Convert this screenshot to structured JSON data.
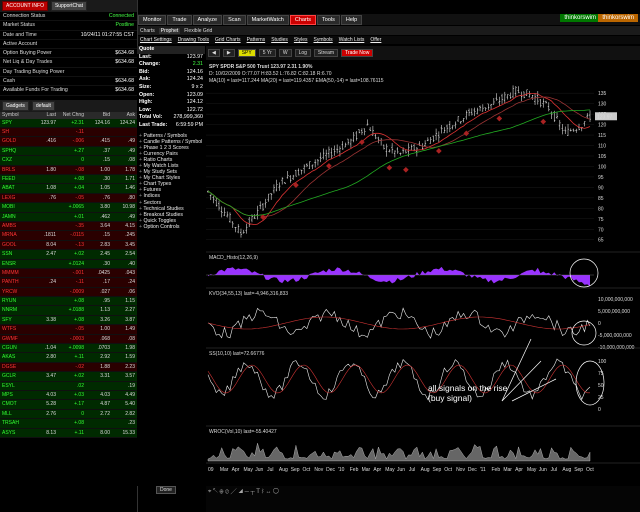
{
  "left": {
    "buttons": {
      "account_info": "ACCOUNT INFO",
      "support_chat": "SupportChat"
    },
    "account_rows": [
      {
        "label": "Connection Status",
        "value": "Connected",
        "green": true
      },
      {
        "label": "Market Status",
        "value": "Postline",
        "green": true
      },
      {
        "label": "Date and Time",
        "value": "10/24/11 01:27:55 CST",
        "green": false
      },
      {
        "label": "Active Account",
        "value": "",
        "green": false
      },
      {
        "label": "Option Buying Power",
        "value": "$634.68",
        "green": false
      },
      {
        "label": "Net Liq & Day Trades",
        "value": "$634.68",
        "green": false
      },
      {
        "label": "Day Trading Buying Power",
        "value": "",
        "green": false
      },
      {
        "label": "Cash",
        "value": "$634.68",
        "green": false
      },
      {
        "label": "Available Funds For Trading",
        "value": "$634.68",
        "green": false
      }
    ],
    "watchlist_controls": {
      "gadgets": "Gadgets",
      "list": "default"
    },
    "watchlist_headers": {
      "symbol": "Symbol",
      "last": "Last",
      "chg": "Net Chng",
      "bid": "Bid",
      "ask": "Ask"
    },
    "watchlist": [
      {
        "sym": "SPY",
        "last": "123.97",
        "chg": "+2.31",
        "bid": "124.16",
        "ask": "124.24",
        "dir": "up"
      },
      {
        "sym": "SH",
        "last": "",
        "chg": "-.11",
        "bid": "",
        "ask": "",
        "dir": "dn"
      },
      {
        "sym": "GOLD",
        "last": ".416",
        "chg": "-.006",
        "bid": ".415",
        "ask": ".49",
        "dir": "dn"
      },
      {
        "sym": "SPHQ",
        "last": "",
        "chg": "+.27",
        "bid": ".37",
        "ask": ".49",
        "dir": "up"
      },
      {
        "sym": "CXZ",
        "last": "",
        "chg": "0",
        "bid": ".15",
        "ask": ".08",
        "dir": "up"
      },
      {
        "sym": "BRLS",
        "last": "1.80",
        "chg": "-.08",
        "bid": "1.00",
        "ask": "1.78",
        "dir": "dn"
      },
      {
        "sym": "FEED",
        "last": "",
        "chg": "+.08",
        "bid": ".30",
        "ask": "1.71",
        "dir": "up"
      },
      {
        "sym": "ABAT",
        "last": "1.08",
        "chg": "+.04",
        "bid": "1.05",
        "ask": "1.46",
        "dir": "up"
      },
      {
        "sym": "LEXG",
        "last": ".76",
        "chg": "-.05",
        "bid": ".76",
        "ask": ".80",
        "dir": "dn"
      },
      {
        "sym": "MOBI",
        "last": "",
        "chg": "+.0065",
        "bid": "3.80",
        "ask": "10.98",
        "dir": "up"
      },
      {
        "sym": "JAMN",
        "last": "",
        "chg": "+.01",
        "bid": ".462",
        "ask": ".49",
        "dir": "up"
      },
      {
        "sym": "AMBS",
        "last": "",
        "chg": "-.35",
        "bid": "3.64",
        "ask": "4.15",
        "dir": "dn"
      },
      {
        "sym": "MRNA",
        "last": ".1811",
        "chg": "-.0115",
        "bid": ".15",
        "ask": ".245",
        "dir": "dn"
      },
      {
        "sym": "GOOL",
        "last": "8.04",
        "chg": "-.13",
        "bid": "2.83",
        "ask": "3.45",
        "dir": "dn"
      },
      {
        "sym": "SSN",
        "last": "2.47",
        "chg": "+.02",
        "bid": "2.45",
        "ask": "2.54",
        "dir": "up"
      },
      {
        "sym": "ENSR",
        "last": "",
        "chg": "+.0124",
        "bid": ".30",
        "ask": ".40",
        "dir": "up"
      },
      {
        "sym": "MMMM",
        "last": "",
        "chg": "-.001",
        "bid": ".0425",
        "ask": ".043",
        "dir": "dn"
      },
      {
        "sym": "PANTH",
        "last": ".24",
        "chg": "-.11",
        "bid": ".17",
        "ask": ".24",
        "dir": "dn"
      },
      {
        "sym": "YRCW",
        "last": "",
        "chg": "-.0009",
        "bid": ".027",
        "ask": ".06",
        "dir": "dn"
      },
      {
        "sym": "RYUN",
        "last": "",
        "chg": "+.08",
        "bid": ".95",
        "ask": "1.15",
        "dir": "up"
      },
      {
        "sym": "NNRM",
        "last": "",
        "chg": "+.0188",
        "bid": "1.13",
        "ask": "2.27",
        "dir": "up"
      },
      {
        "sym": "SFY",
        "last": "3.38",
        "chg": "+.08",
        "bid": "3.26",
        "ask": "3.87",
        "dir": "up"
      },
      {
        "sym": "WTFS",
        "last": "",
        "chg": "-.05",
        "bid": "1.00",
        "ask": "1.49",
        "dir": "dn"
      },
      {
        "sym": "GWMF",
        "last": "",
        "chg": "-.0003",
        "bid": ".068",
        "ask": ".08",
        "dir": "dn"
      },
      {
        "sym": "CGUN",
        "last": ".1.04",
        "chg": "+.0098",
        "bid": ".0703",
        "ask": "1.98",
        "dir": "up"
      },
      {
        "sym": "AKAS",
        "last": "2.80",
        "chg": "+.11",
        "bid": "2.92",
        "ask": "1.59",
        "dir": "up"
      },
      {
        "sym": "DGSE",
        "last": "",
        "chg": "-.02",
        "bid": "1.88",
        "ask": "2.23",
        "dir": "dn"
      },
      {
        "sym": "GCLR",
        "last": "3.47",
        "chg": "+.02",
        "bid": "3.31",
        "ask": "3.57",
        "dir": "up"
      },
      {
        "sym": "ESYL",
        "last": "",
        "chg": ".02",
        "bid": "",
        "ask": ".19",
        "dir": "up"
      },
      {
        "sym": "MPS",
        "last": "4.03",
        "chg": "+.03",
        "bid": "4.03",
        "ask": "4.49",
        "dir": "up"
      },
      {
        "sym": "CMOT",
        "last": "5.28",
        "chg": "+.17",
        "bid": "4.87",
        "ask": "5.40",
        "dir": "up"
      },
      {
        "sym": "MLL",
        "last": "2.76",
        "chg": "0",
        "bid": "2.72",
        "ask": "2.82",
        "dir": "up"
      },
      {
        "sym": "TRSAH",
        "last": "",
        "chg": "+.08",
        "bid": "",
        "ask": ".23",
        "dir": "up"
      },
      {
        "sym": "ASYS",
        "last": "8.13",
        "chg": "+.11",
        "bid": "8.00",
        "ask": "15.33",
        "dir": "up"
      }
    ]
  },
  "top_tabs": [
    "Monitor",
    "Trade",
    "Analyze",
    "Scan",
    "MarketWatch",
    "Charts",
    "Tools",
    "Help"
  ],
  "active_top_tab": "Charts",
  "brand": {
    "logo1": "thinkorswim",
    "logo2": "thinkorswim"
  },
  "sub_tabs": [
    "Charts",
    "Prophet",
    "Flexible Grid"
  ],
  "menu_items": [
    "Chart Settings",
    "Drawing Tools",
    "Grid Charts",
    "Patterns",
    "Studies",
    "Styles",
    "Symbols",
    "Watch Lists",
    "Offer"
  ],
  "quote": {
    "header": "Quote",
    "rows": [
      {
        "k": "Last:",
        "v": "123.97"
      },
      {
        "k": "Change:",
        "v": "2.31",
        "g": true
      },
      {
        "k": "Bid:",
        "v": "124.16"
      },
      {
        "k": "Ask:",
        "v": "124.24"
      },
      {
        "k": "Size:",
        "v": "9 x 2"
      },
      {
        "k": "Open:",
        "v": "123.09"
      },
      {
        "k": "High:",
        "v": "124.12"
      },
      {
        "k": "Low:",
        "v": "122.72"
      },
      {
        "k": "Total Vol:",
        "v": "278,999,360"
      },
      {
        "k": "Last Trade:",
        "v": "6:59:59 PM"
      }
    ],
    "tree": [
      "Patterns / Symbols",
      "Candle Patterns / Symbol",
      "Phase 1 2 3 Scores",
      "Currency Pairs",
      "Ratio Charts",
      "My Watch Lists",
      "My Study Sets",
      "My Chart Styles",
      "Chart Types",
      "Futures",
      "Indices",
      "Sectors",
      "Technical Studies",
      "Breakout Studies",
      "Quick Toggles",
      "Option Controls"
    ]
  },
  "chart_toolbar": {
    "symbol": "SPY",
    "period": "5 Yr",
    "agg": "W",
    "log": "Log",
    "stream": "Stream",
    "trade": "Trade Now"
  },
  "chart": {
    "title": "SPY SPDR S&P 500 Trust  123.97  2.31  1.90%",
    "ohlc": "D: 10/02/2009  O:77.07  H:83.52  L:76.82  C:82.18  R:6.70",
    "ma_legend": "MA(10) = last=117.244   MA(20) = last=119.4357   EMA(50,-14) = last=108.76115",
    "price_ticks": [
      "135",
      "130",
      "125",
      "120",
      "115",
      "110",
      "105",
      "100",
      "95",
      "90",
      "85",
      "80",
      "75",
      "70",
      "65"
    ],
    "last_price_tag": "123.97",
    "macd_label": "MACD_Histo(12,26,9)",
    "kvo_label": "KVO(34,55,13)   last=-4,946,316,833",
    "kvo_ticks": [
      "10,000,000,000",
      "5,000,000,000",
      "0",
      "-5,000,000,000",
      "-10,000,000,000"
    ],
    "ss_label": "SS(10,10)   last=72.66776",
    "ss_ticks": [
      "100",
      "75",
      "50",
      "25",
      "0"
    ],
    "wroc_label": "WROC(Vol,10)   last=-55.40427",
    "x_ticks": [
      "09",
      "Mar",
      "Apr",
      "May",
      "Jun",
      "Jul",
      "Aug",
      "Sep",
      "Oct",
      "Nov",
      "Dec",
      "'10",
      "Feb",
      "Mar",
      "Apr",
      "May",
      "Jun",
      "Jul",
      "Aug",
      "Sep",
      "Oct",
      "Nov",
      "Dec",
      "'11",
      "Feb",
      "Mar",
      "Apr",
      "May",
      "Jun",
      "Jul",
      "Aug",
      "Sep",
      "Oct"
    ],
    "annotation": "all signals on the rise\n(buy signal)"
  },
  "status": {
    "done": "Done"
  }
}
